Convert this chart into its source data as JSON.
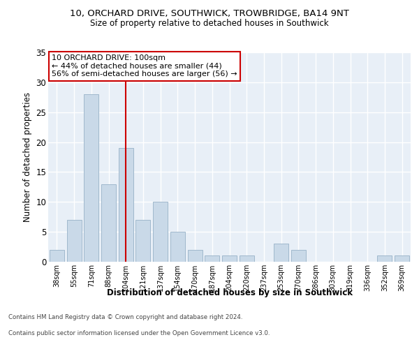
{
  "title1": "10, ORCHARD DRIVE, SOUTHWICK, TROWBRIDGE, BA14 9NT",
  "title2": "Size of property relative to detached houses in Southwick",
  "xlabel": "Distribution of detached houses by size in Southwick",
  "ylabel": "Number of detached properties",
  "categories": [
    "38sqm",
    "55sqm",
    "71sqm",
    "88sqm",
    "104sqm",
    "121sqm",
    "137sqm",
    "154sqm",
    "170sqm",
    "187sqm",
    "204sqm",
    "220sqm",
    "237sqm",
    "253sqm",
    "270sqm",
    "286sqm",
    "303sqm",
    "319sqm",
    "336sqm",
    "352sqm",
    "369sqm"
  ],
  "values": [
    2,
    7,
    28,
    13,
    19,
    7,
    10,
    5,
    2,
    1,
    1,
    1,
    0,
    3,
    2,
    0,
    0,
    0,
    0,
    1,
    1
  ],
  "bar_color": "#c9d9e8",
  "bar_edge_color": "#a0b8cc",
  "vline_x_index": 4,
  "vline_color": "#cc0000",
  "annotation_text": "10 ORCHARD DRIVE: 100sqm\n← 44% of detached houses are smaller (44)\n56% of semi-detached houses are larger (56) →",
  "annotation_box_color": "#ffffff",
  "annotation_box_edge_color": "#cc0000",
  "ylim": [
    0,
    35
  ],
  "yticks": [
    0,
    5,
    10,
    15,
    20,
    25,
    30,
    35
  ],
  "background_color": "#e8eff7",
  "grid_color": "#ffffff",
  "fig_bg_color": "#ffffff",
  "footer_line1": "Contains HM Land Registry data © Crown copyright and database right 2024.",
  "footer_line2": "Contains public sector information licensed under the Open Government Licence v3.0."
}
